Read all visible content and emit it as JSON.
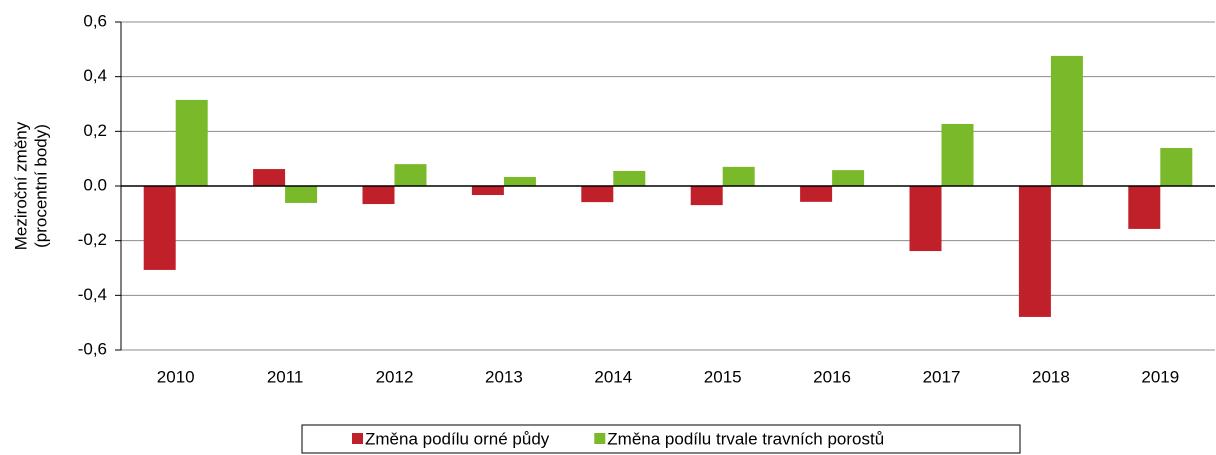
{
  "chart_data": {
    "type": "bar",
    "ylabel": [
      "Meziroční změny",
      "(procentní body)"
    ],
    "categories": [
      "2010",
      "2011",
      "2012",
      "2013",
      "2014",
      "2015",
      "2016",
      "2017",
      "2018",
      "2019"
    ],
    "series": [
      {
        "name": "Změna podílu orné půdy",
        "color": "#c0202a",
        "values": [
          -0.307,
          0.062,
          -0.066,
          -0.033,
          -0.059,
          -0.07,
          -0.058,
          -0.238,
          -0.479,
          -0.157
        ]
      },
      {
        "name": "Změna podílu trvale travních porostů",
        "color": "#7ab929",
        "values": [
          0.315,
          -0.062,
          0.08,
          0.033,
          0.055,
          0.07,
          0.058,
          0.227,
          0.476,
          0.139
        ]
      }
    ],
    "ylim": [
      -0.6,
      0.6
    ],
    "yticks": [
      {
        "value": -0.6,
        "label": "-0,6"
      },
      {
        "value": -0.4,
        "label": "-0,4"
      },
      {
        "value": -0.2,
        "label": "-0,2"
      },
      {
        "value": 0,
        "label": "0.0"
      },
      {
        "value": 0.2,
        "label": "0,2"
      },
      {
        "value": 0.4,
        "label": "0,4"
      },
      {
        "value": 0.6,
        "label": "0,6"
      }
    ],
    "grid": true,
    "legend": "bottom"
  }
}
